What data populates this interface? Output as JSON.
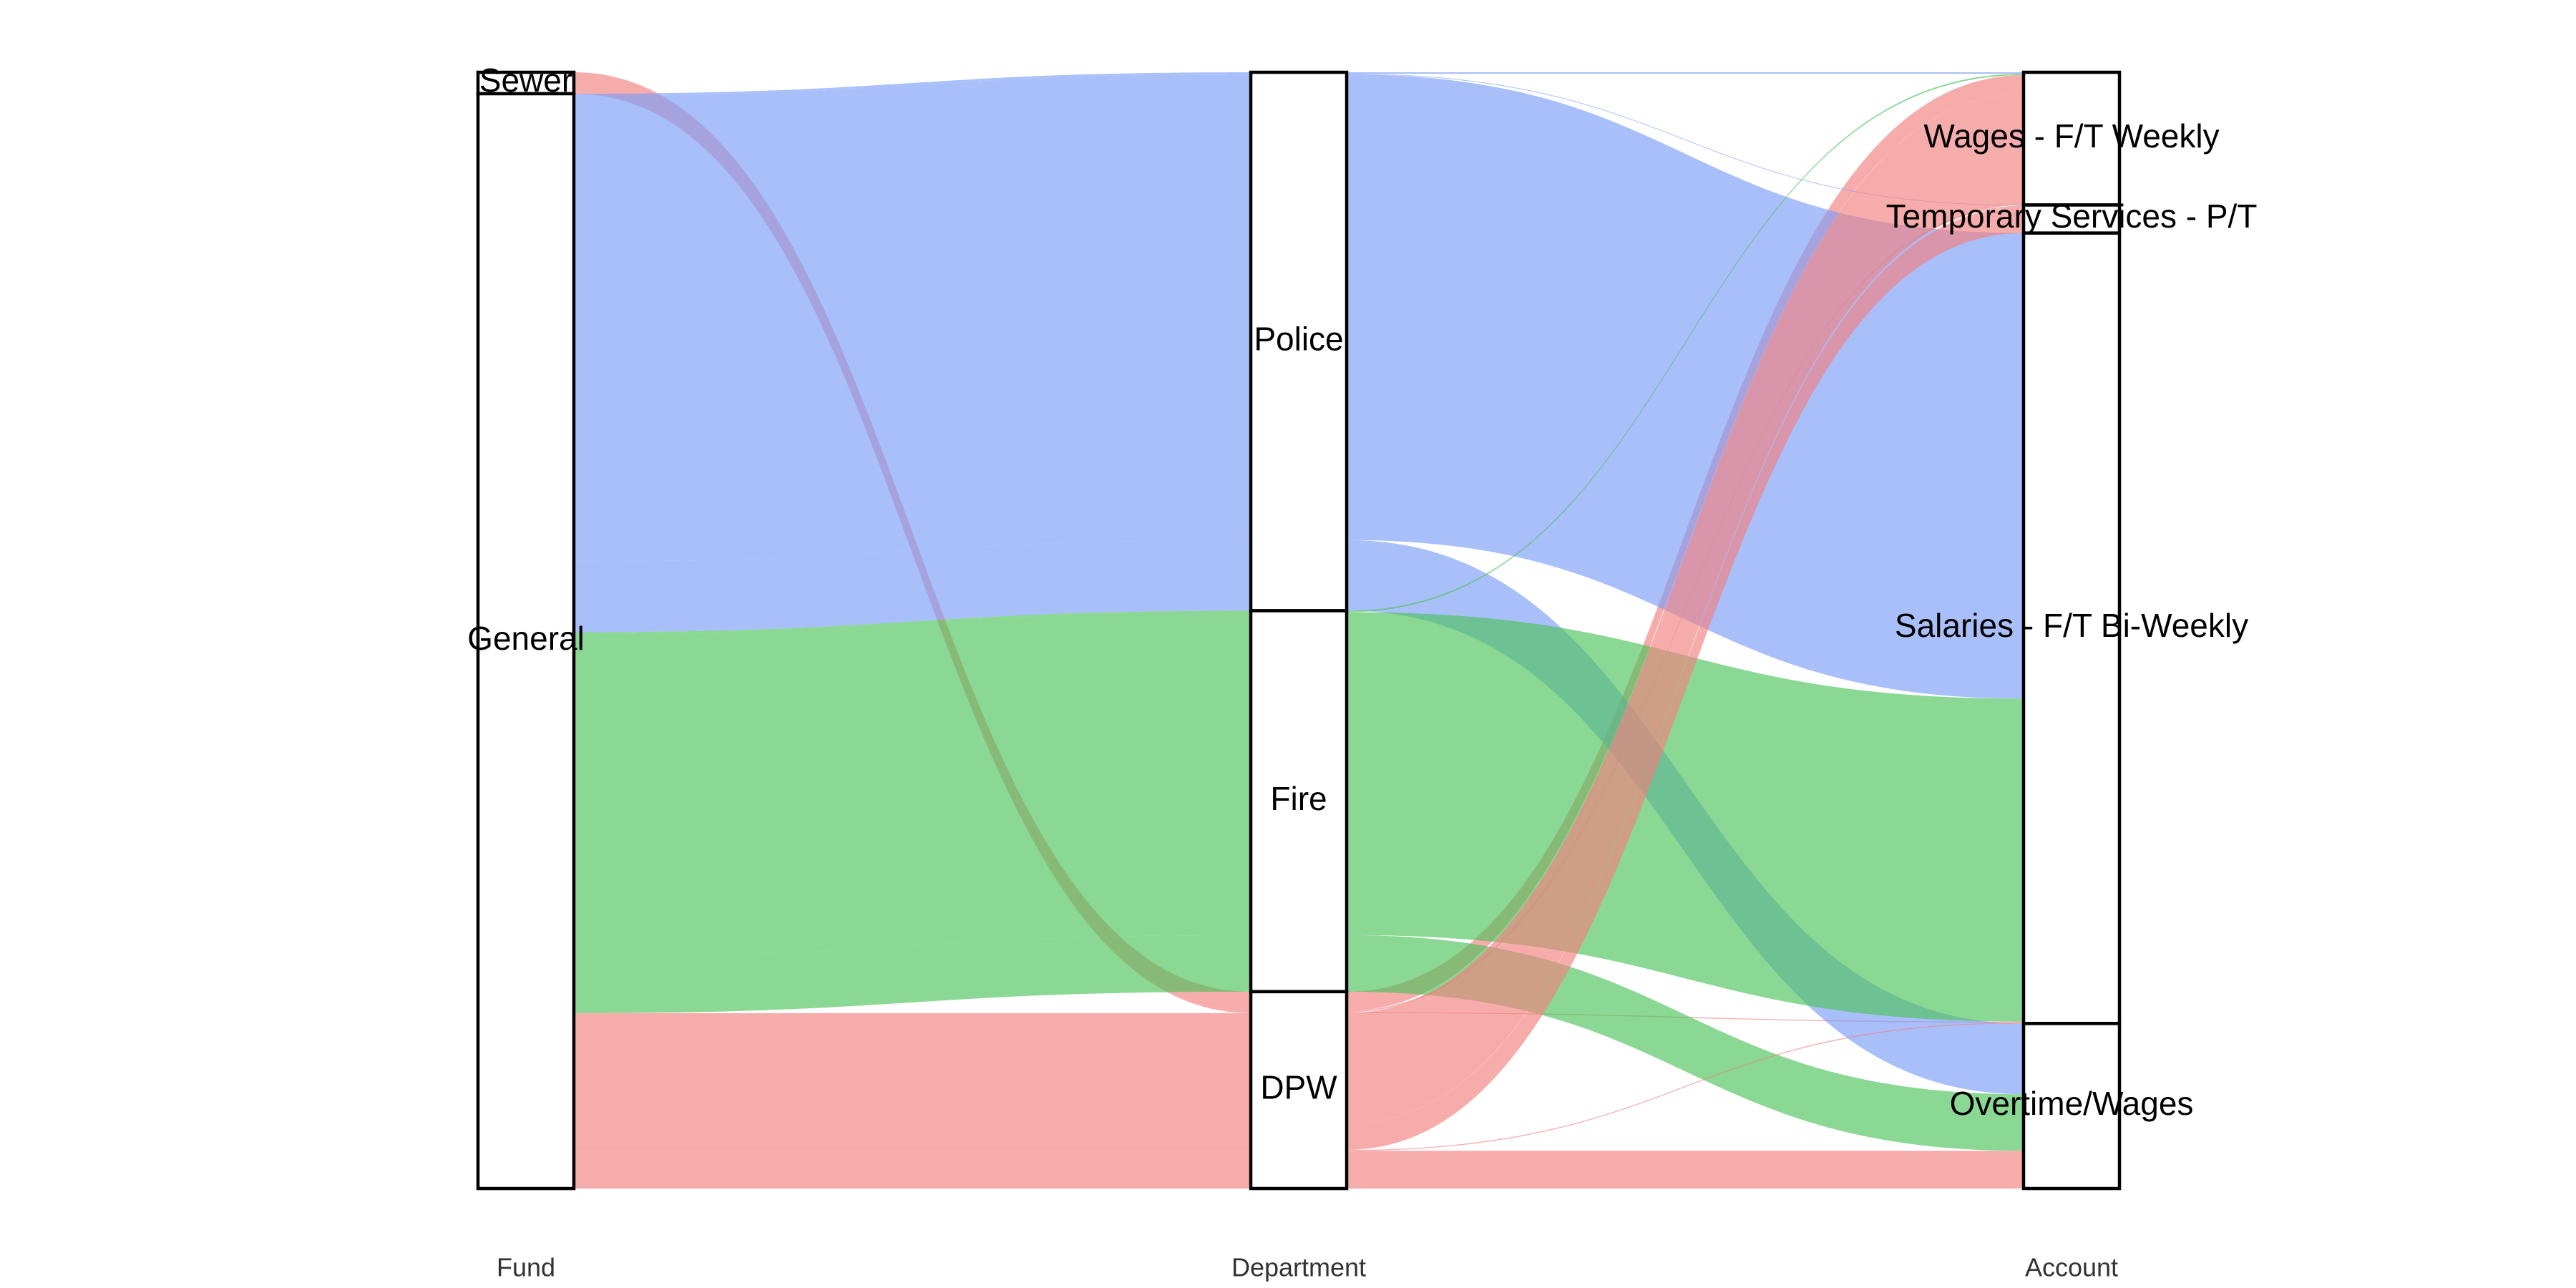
{
  "chart_data": {
    "type": "alluvial",
    "axes": [
      "Fund",
      "Department",
      "Account"
    ],
    "strata": {
      "Fund": [
        "Sewer",
        "General"
      ],
      "Department": [
        "Police",
        "Fire",
        "DPW"
      ],
      "Account": [
        "Wages - F/T Weekly",
        "Temporary Services - P/T",
        "Salaries - F/T Bi-Weekly",
        "Overtime/Wages"
      ]
    },
    "stratum_order": {
      "Fund": [
        "Sewer",
        "General"
      ],
      "Department": [
        "Police",
        "Fire",
        "DPW"
      ],
      "Account": [
        "Wages - F/T Weekly",
        "Temporary Services - P/T",
        "Salaries - F/T Bi-Weekly",
        "Overtime/Wages"
      ]
    },
    "fill_by": "Department",
    "colors": {
      "Police": "#7B9CF7",
      "Fire": "#4DC25A",
      "DPW": "#F27F7F"
    },
    "flow_opacity": 0.65,
    "flows": [
      {
        "Fund": "Sewer",
        "Department": "DPW",
        "Account": "Wages - F/T Weekly",
        "value": 8.1
      },
      {
        "Fund": "Sewer",
        "Department": "DPW",
        "Account": "Temporary Services - P/T",
        "value": 0.6
      },
      {
        "Fund": "Sewer",
        "Department": "DPW",
        "Account": "Salaries - F/T Bi-Weekly",
        "value": 0.4
      },
      {
        "Fund": "General",
        "Department": "Police",
        "Account": "Wages - F/T Weekly",
        "value": 0.6
      },
      {
        "Fund": "General",
        "Department": "Police",
        "Account": "Temporary Services - P/T",
        "value": 0.3
      },
      {
        "Fund": "General",
        "Department": "Police",
        "Account": "Salaries - F/T Bi-Weekly",
        "value": 197.5
      },
      {
        "Fund": "General",
        "Department": "Police",
        "Account": "Overtime/Wages",
        "value": 30.0
      },
      {
        "Fund": "General",
        "Department": "Fire",
        "Account": "Wages - F/T Weekly",
        "value": 0.6
      },
      {
        "Fund": "General",
        "Department": "Fire",
        "Account": "Salaries - F/T Bi-Weekly",
        "value": 137.0
      },
      {
        "Fund": "General",
        "Department": "Fire",
        "Account": "Overtime/Wages",
        "value": 24.0
      },
      {
        "Fund": "General",
        "Department": "DPW",
        "Account": "Wages - F/T Weekly",
        "value": 47.0
      },
      {
        "Fund": "General",
        "Department": "DPW",
        "Account": "Temporary Services - P/T",
        "value": 11.0
      },
      {
        "Fund": "General",
        "Department": "DPW",
        "Account": "Salaries - F/T Bi-Weekly",
        "value": 0.4
      },
      {
        "Fund": "General",
        "Department": "DPW",
        "Account": "Overtime/Wages",
        "value": 16.0
      }
    ]
  }
}
